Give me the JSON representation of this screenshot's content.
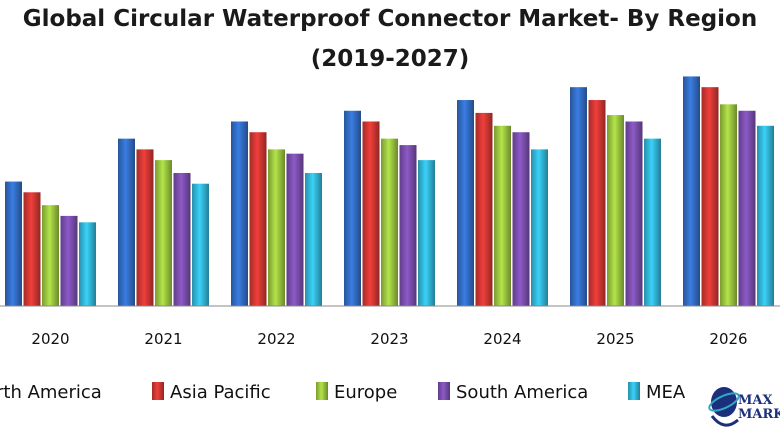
{
  "chart_data": {
    "type": "bar",
    "title_line1": "Global Circular Waterproof Connector Market- By Region",
    "title_line2": "(2019-2027)",
    "categories": [
      "2020",
      "2021",
      "2022",
      "2023",
      "2024",
      "2025",
      "2026"
    ],
    "series": [
      {
        "name": "North America",
        "legend_text": "rth America",
        "color": "#2e64b5",
        "values": [
          58,
          78,
          86,
          91,
          96,
          102,
          107
        ]
      },
      {
        "name": "Asia Pacific",
        "color": "#c1322f",
        "values": [
          53,
          73,
          81,
          86,
          90,
          96,
          102
        ]
      },
      {
        "name": "Europe",
        "color": "#8fb63a",
        "values": [
          47,
          68,
          73,
          78,
          84,
          89,
          94
        ]
      },
      {
        "name": "South America",
        "color": "#7148a0",
        "values": [
          42,
          62,
          71,
          75,
          81,
          86,
          91
        ]
      },
      {
        "name": "MEA",
        "color": "#2ea8c7",
        "values": [
          39,
          57,
          62,
          68,
          73,
          78,
          84
        ]
      }
    ],
    "xlabel": "",
    "ylabel": "",
    "ylim": [
      0,
      110
    ]
  },
  "logo": {
    "line1": "MAX",
    "line2": "MARKET"
  }
}
